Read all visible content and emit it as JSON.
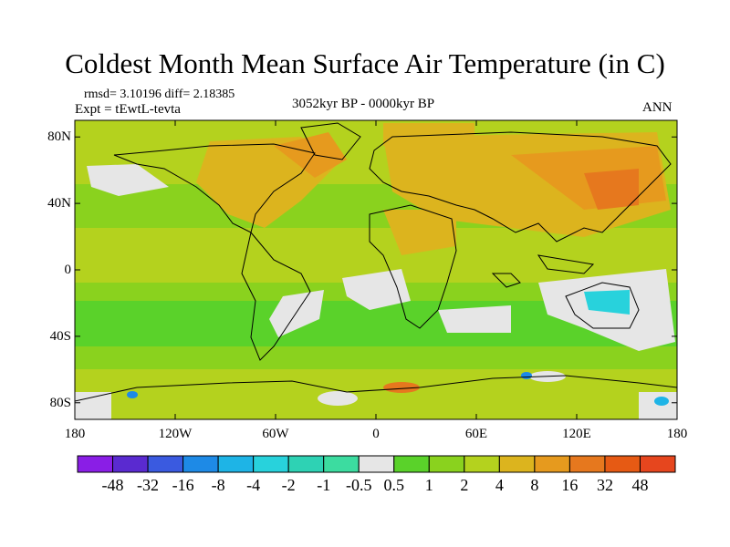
{
  "header": {
    "title": "Coldest Month Mean Surface Air Temperature (in C)",
    "stats": "rmsd= 3.10196 diff= 2.18385",
    "experiment": "Expt = tEwtL-tevta",
    "period": "3052kyr BP - 0000kyr BP",
    "season": "ANN"
  },
  "axes": {
    "y_ticks": [
      "80N",
      "40N",
      "0",
      "40S",
      "80S"
    ],
    "y_values": [
      80,
      40,
      0,
      -40,
      -80
    ],
    "x_ticks": [
      "180",
      "120W",
      "60W",
      "0",
      "60E",
      "120E",
      "180"
    ],
    "x_values": [
      -180,
      -120,
      -60,
      0,
      60,
      120,
      180
    ],
    "lat_range": [
      -90,
      90
    ],
    "lon_range": [
      -180,
      180
    ]
  },
  "colorbar": {
    "labels": [
      "-48",
      "-32",
      "-16",
      "-8",
      "-4",
      "-2",
      "-1",
      "-0.5",
      "0.5",
      "1",
      "2",
      "4",
      "8",
      "16",
      "32",
      "48"
    ],
    "colors": [
      "#8a1ee6",
      "#5a2ad0",
      "#3a5ae0",
      "#1e8ae6",
      "#1eb4e6",
      "#28d2dc",
      "#2ed2b4",
      "#3cdca0",
      "#e6e6e6",
      "#5ad22a",
      "#8ad21e",
      "#b4d21e",
      "#dcb41e",
      "#e69a1e",
      "#e6781e",
      "#e65a14",
      "#e6461e"
    ]
  },
  "colors": {
    "background_field": "#b4d21e",
    "warm_land": "#dcb41e",
    "coast": "#000000"
  }
}
